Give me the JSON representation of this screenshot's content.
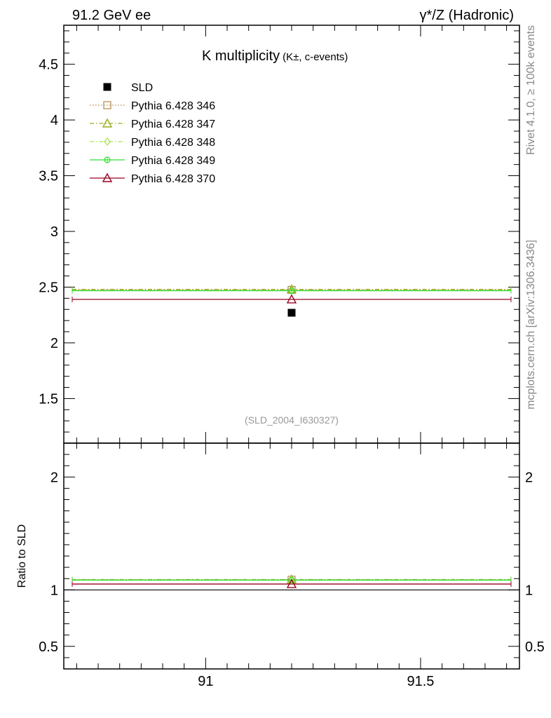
{
  "header": {
    "left": "91.2 GeV ee",
    "right": "γ*/Z (Hadronic)"
  },
  "side_labels": {
    "rivet": "Rivet 4.1.0, ≥ 100k events",
    "source": "mcplots.cern.ch [arXiv:1306.3436]"
  },
  "chart_data": [
    {
      "type": "scatter",
      "title_main": "K multiplicity",
      "title_sub": "(K±, c-events)",
      "analysis_tag": "(SLD_2004_I630327)",
      "xlim": [
        90.67,
        91.73
      ],
      "ylim": [
        1.1,
        4.85
      ],
      "x_ticks": [
        91,
        91.5
      ],
      "y_ticks": [
        1.5,
        2,
        2.5,
        3,
        3.5,
        4,
        4.5
      ],
      "y_tick_labels": [
        "1.5",
        "2",
        "2.5",
        "3",
        "3.5",
        "4",
        "4.5"
      ],
      "data": {
        "name": "SLD",
        "x": [
          91.2
        ],
        "y": [
          2.27
        ],
        "color": "#000000",
        "marker": "square-filled"
      },
      "series": [
        {
          "name": "Pythia 6.428 346",
          "x": [
            91.2
          ],
          "y": [
            2.475
          ],
          "color": "#b8864b",
          "marker": "square-open",
          "dash": "dotted"
        },
        {
          "name": "Pythia 6.428 347",
          "x": [
            91.2
          ],
          "y": [
            2.48
          ],
          "color": "#9aab1e",
          "marker": "triangle-open",
          "dash": "dashdot"
        },
        {
          "name": "Pythia 6.428 348",
          "x": [
            91.2
          ],
          "y": [
            2.47
          ],
          "color": "#a8e64b",
          "marker": "diamond-open",
          "dash": "dashdot"
        },
        {
          "name": "Pythia 6.428 349",
          "x": [
            91.2
          ],
          "y": [
            2.468
          ],
          "color": "#33dd33",
          "marker": "circle-cross",
          "dash": "solid"
        },
        {
          "name": "Pythia 6.428 370",
          "x": [
            91.2
          ],
          "y": [
            2.39
          ],
          "color": "#990022",
          "marker": "triangle-open",
          "dash": "solid"
        }
      ],
      "legend_position": "top-left",
      "grid": false
    },
    {
      "type": "scatter",
      "ylabel": "Ratio to SLD",
      "xlim": [
        90.67,
        91.73
      ],
      "ylim": [
        0.3,
        2.3
      ],
      "x_ticks": [
        91,
        91.5
      ],
      "x_tick_labels": [
        "91",
        "91.5"
      ],
      "y_ticks": [
        0.5,
        1,
        2
      ],
      "y_tick_labels": [
        "0.5",
        "1",
        "2"
      ],
      "reference_line": 1,
      "series": [
        {
          "name": "Pythia 6.428 346",
          "y": [
            1.09
          ]
        },
        {
          "name": "Pythia 6.428 347",
          "y": [
            1.092
          ]
        },
        {
          "name": "Pythia 6.428 348",
          "y": [
            1.088
          ]
        },
        {
          "name": "Pythia 6.428 349",
          "y": [
            1.087
          ]
        },
        {
          "name": "Pythia 6.428 370",
          "y": [
            1.052
          ]
        }
      ],
      "grid": false
    }
  ]
}
